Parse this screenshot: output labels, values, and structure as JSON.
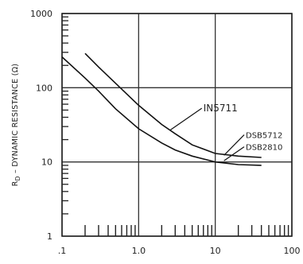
{
  "chart_data": {
    "type": "line",
    "title": "",
    "xlabel": "",
    "ylabel_main": "R",
    "ylabel_sub": "D",
    "ylabel_rest": " – DYNAMIC RESISTANCE (Ω)",
    "x_scale": "log",
    "y_scale": "log",
    "xlim": [
      0.1,
      100
    ],
    "ylim": [
      1,
      1000
    ],
    "x_ticks": [
      {
        "value": 0.1,
        "label": ".1"
      },
      {
        "value": 1,
        "label": "1.0"
      },
      {
        "value": 10,
        "label": "10"
      },
      {
        "value": 100,
        "label": "100"
      }
    ],
    "y_ticks": [
      {
        "value": 1,
        "label": "1"
      },
      {
        "value": 10,
        "label": "10"
      },
      {
        "value": 100,
        "label": "100"
      },
      {
        "value": 1000,
        "label": "1000"
      }
    ],
    "grid": true,
    "series": [
      {
        "name": "IN5711",
        "color": "#111111",
        "points": [
          [
            0.2,
            290
          ],
          [
            0.3,
            190
          ],
          [
            0.5,
            115
          ],
          [
            0.8,
            72
          ],
          [
            1,
            58
          ],
          [
            2,
            32
          ],
          [
            3,
            24
          ],
          [
            5,
            17
          ],
          [
            10,
            13
          ],
          [
            20,
            12
          ],
          [
            40,
            11.5
          ]
        ]
      },
      {
        "name": "DSB5712",
        "color": "#111111",
        "points": [
          [
            0.1,
            260
          ],
          [
            0.2,
            135
          ],
          [
            0.3,
            90
          ],
          [
            0.5,
            52
          ],
          [
            1,
            28
          ],
          [
            2,
            18
          ],
          [
            3,
            14.5
          ],
          [
            5,
            12
          ],
          [
            10,
            10
          ],
          [
            20,
            9.2
          ],
          [
            40,
            9
          ]
        ]
      }
    ],
    "annotations": [
      {
        "text": "IN5711",
        "size": "large",
        "x": 7,
        "y": 48,
        "arrow_to": [
          2.6,
          27
        ]
      },
      {
        "text": "DSB5712",
        "size": "small",
        "x": 25,
        "y": 21,
        "arrow_to": [
          13,
          12.3
        ]
      },
      {
        "text": "DSB2810",
        "size": "small",
        "x": 25,
        "y": 14.5,
        "arrow_to": [
          13,
          10.4
        ]
      }
    ]
  }
}
